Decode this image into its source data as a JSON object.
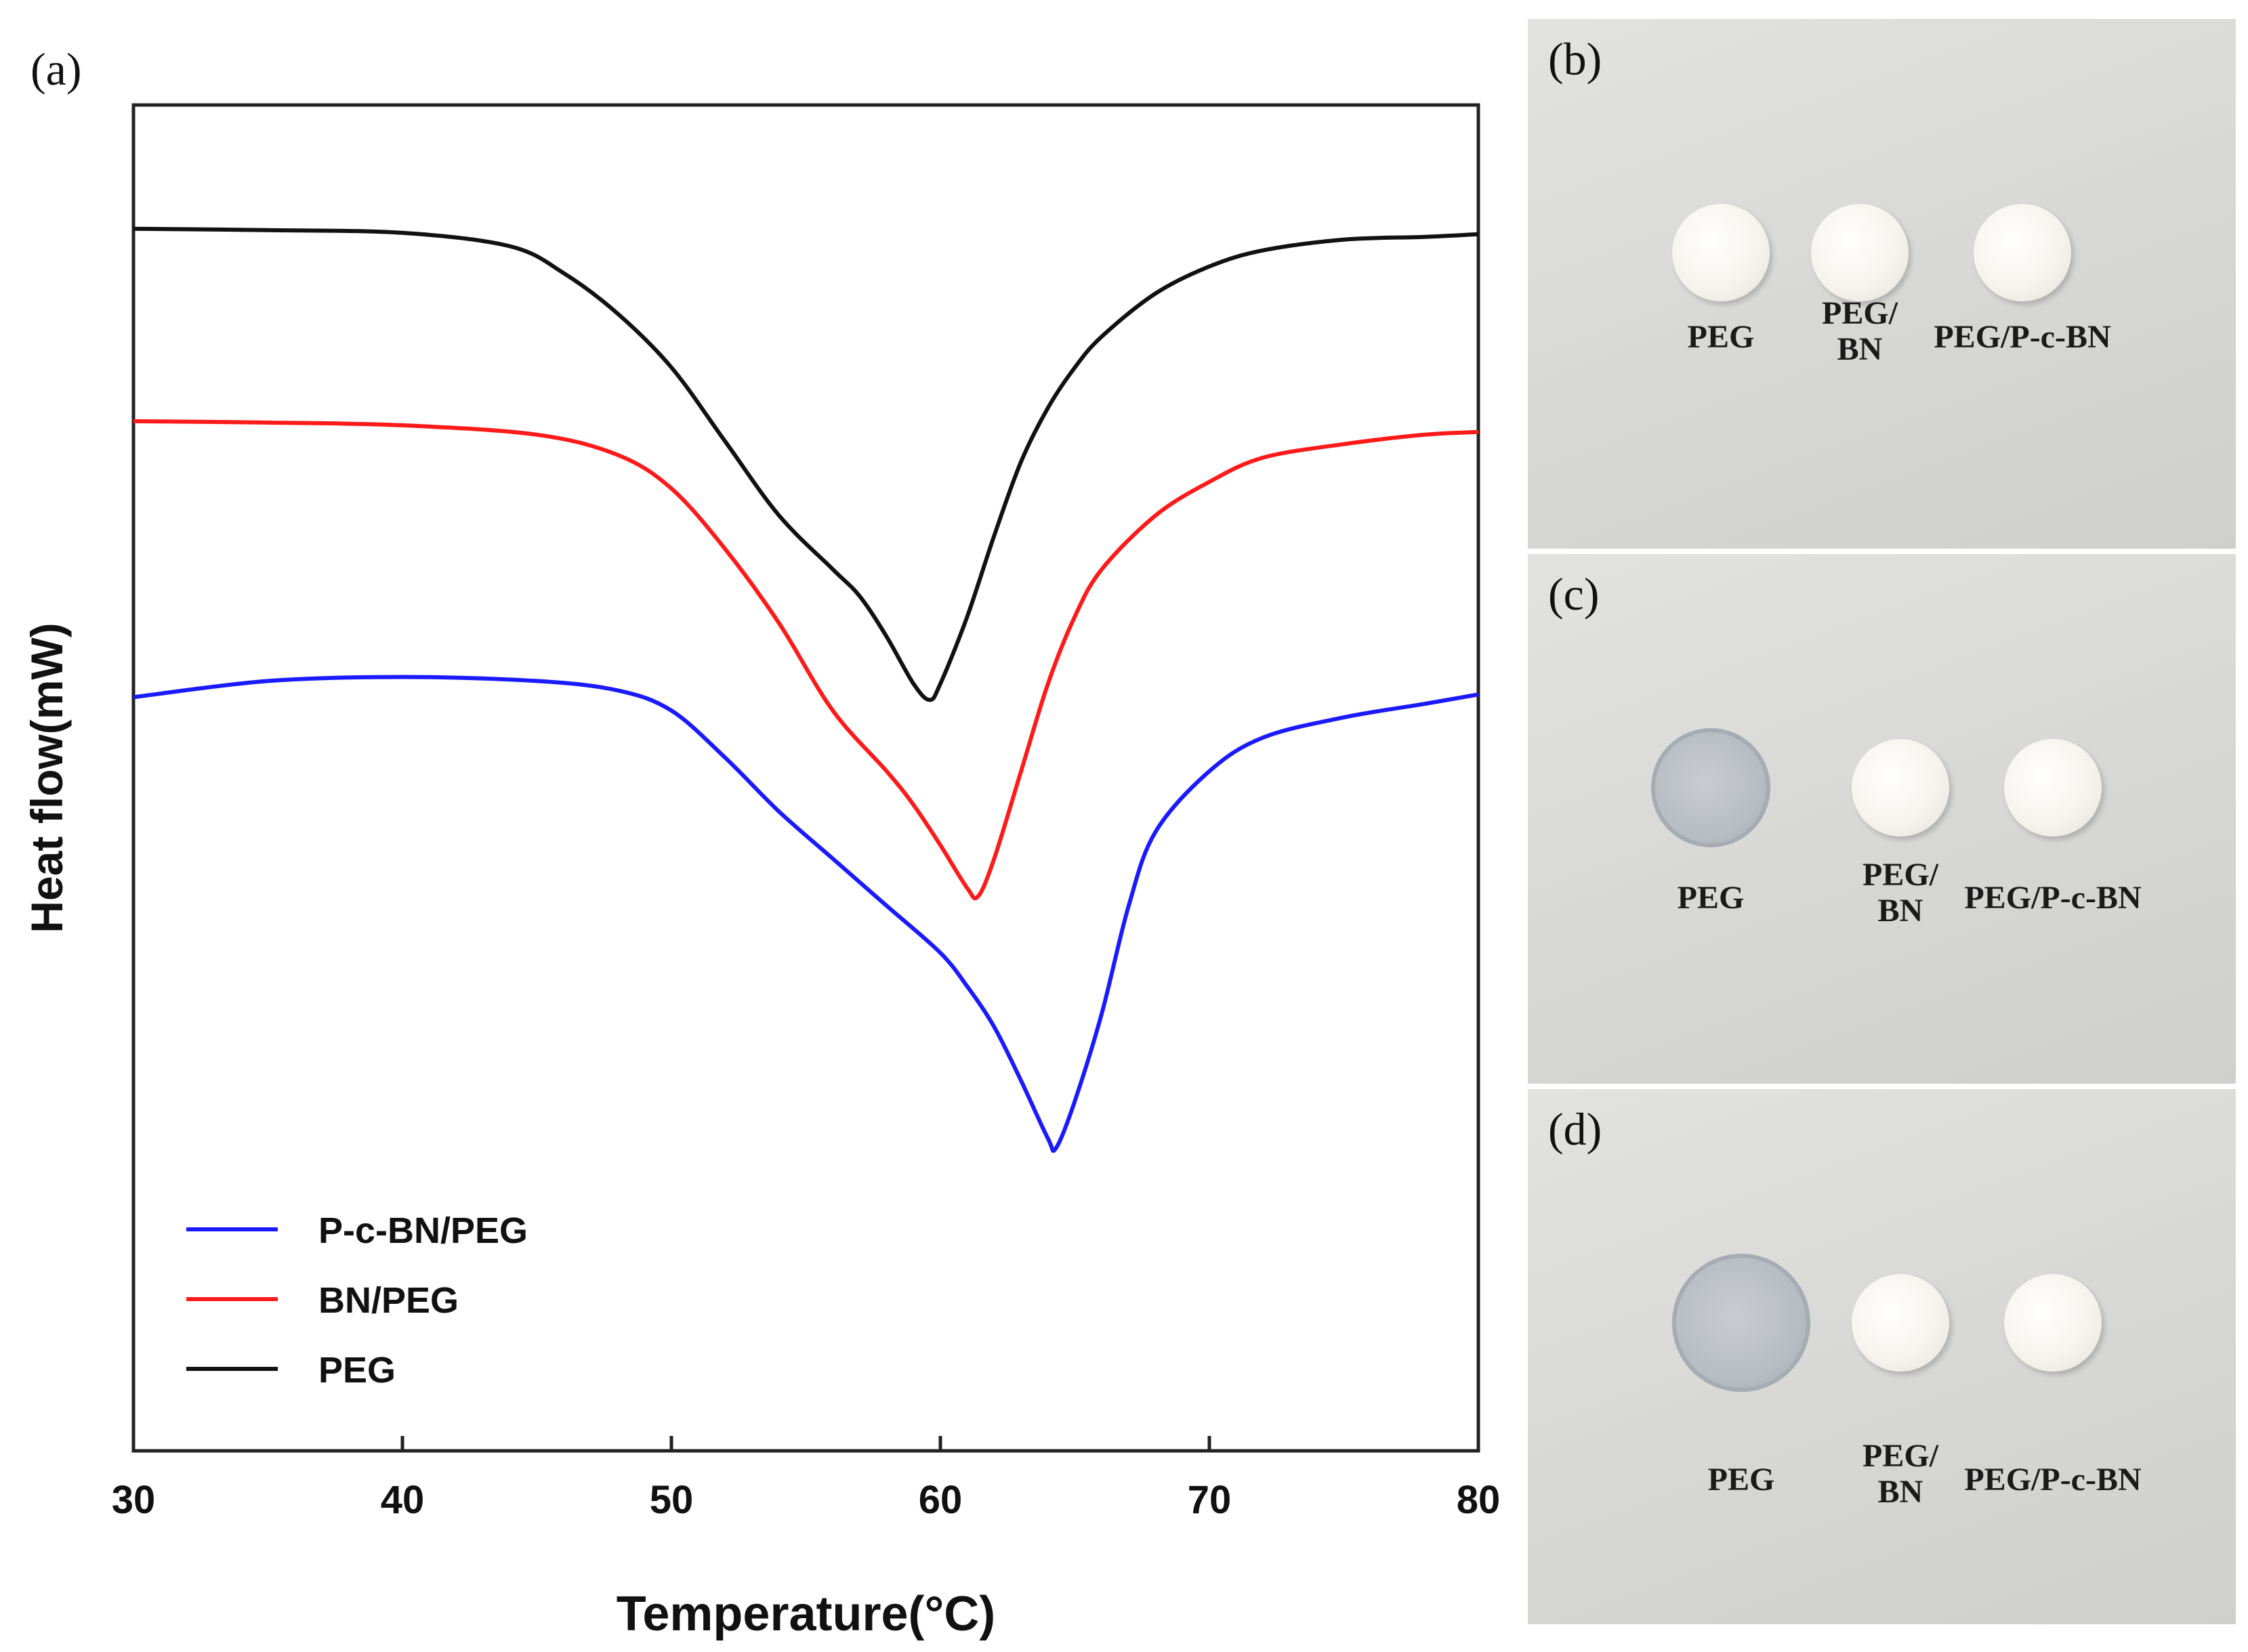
{
  "chart_data": {
    "type": "line",
    "panel_label": "(a)",
    "xlabel": "Temperature(°C)",
    "ylabel": "Heat flow(mW)",
    "xlim": [
      30,
      80
    ],
    "ylim": [
      -10,
      0
    ],
    "xticks": [
      "30",
      "40",
      "50",
      "60",
      "70",
      "80"
    ],
    "yticks": [],
    "grid": false,
    "legend_position": "bottom-left",
    "series": [
      {
        "name": "P-c-BN/PEG",
        "color": "#1a1aff",
        "x": [
          30,
          35,
          40,
          45,
          48,
          50,
          52,
          54,
          56,
          58,
          60,
          61,
          62,
          63,
          64,
          64.3,
          65,
          66,
          67,
          68,
          70,
          72,
          75,
          78,
          80
        ],
        "y": [
          -4.4,
          -4.28,
          -4.25,
          -4.28,
          -4.35,
          -4.5,
          -4.85,
          -5.25,
          -5.6,
          -5.95,
          -6.3,
          -6.55,
          -6.85,
          -7.25,
          -7.68,
          -7.75,
          -7.4,
          -6.75,
          -5.95,
          -5.4,
          -4.95,
          -4.7,
          -4.55,
          -4.45,
          -4.38
        ]
      },
      {
        "name": "BN/PEG",
        "color": "#ff1a1a",
        "x": [
          30,
          35,
          40,
          45,
          48,
          50,
          52,
          54,
          56,
          58,
          59,
          60,
          61,
          61.4,
          62,
          63,
          64,
          65,
          66,
          68,
          70,
          72,
          75,
          78,
          80
        ],
        "y": [
          -2.35,
          -2.36,
          -2.38,
          -2.45,
          -2.6,
          -2.85,
          -3.3,
          -3.85,
          -4.5,
          -4.95,
          -5.2,
          -5.5,
          -5.82,
          -5.88,
          -5.6,
          -4.95,
          -4.3,
          -3.8,
          -3.45,
          -3.05,
          -2.8,
          -2.62,
          -2.52,
          -2.45,
          -2.43
        ]
      },
      {
        "name": "PEG",
        "color": "#111111",
        "x": [
          30,
          35,
          40,
          44,
          46,
          48,
          50,
          52,
          54,
          56,
          57,
          58,
          59,
          59.6,
          60,
          61,
          62,
          63,
          64,
          65,
          66,
          68,
          70,
          72,
          75,
          78,
          80
        ],
        "y": [
          -0.92,
          -0.93,
          -0.95,
          -1.05,
          -1.25,
          -1.55,
          -1.95,
          -2.5,
          -3.05,
          -3.45,
          -3.65,
          -3.95,
          -4.3,
          -4.42,
          -4.3,
          -3.8,
          -3.2,
          -2.65,
          -2.25,
          -1.95,
          -1.72,
          -1.4,
          -1.2,
          -1.08,
          -1.0,
          -0.98,
          -0.96
        ]
      }
    ]
  },
  "photo_panels": [
    {
      "label": "(b)",
      "samples": [
        {
          "label": "PEG",
          "appearance": "solid"
        },
        {
          "label": "PEG/\nBN",
          "appearance": "solid"
        },
        {
          "label": "PEG/P-c-BN",
          "appearance": "solid"
        }
      ]
    },
    {
      "label": "(c)",
      "samples": [
        {
          "label": "PEG",
          "appearance": "melted"
        },
        {
          "label": "PEG/\nBN",
          "appearance": "solid"
        },
        {
          "label": "PEG/P-c-BN",
          "appearance": "solid"
        }
      ]
    },
    {
      "label": "(d)",
      "samples": [
        {
          "label": "PEG",
          "appearance": "melted"
        },
        {
          "label": "PEG/\nBN",
          "appearance": "solid"
        },
        {
          "label": "PEG/P-c-BN",
          "appearance": "solid"
        }
      ]
    }
  ],
  "colors": {
    "photo_background": "#d7d7d5",
    "disc_fill": "#f6f4ee",
    "melted_fill": "#b8bcc3"
  }
}
